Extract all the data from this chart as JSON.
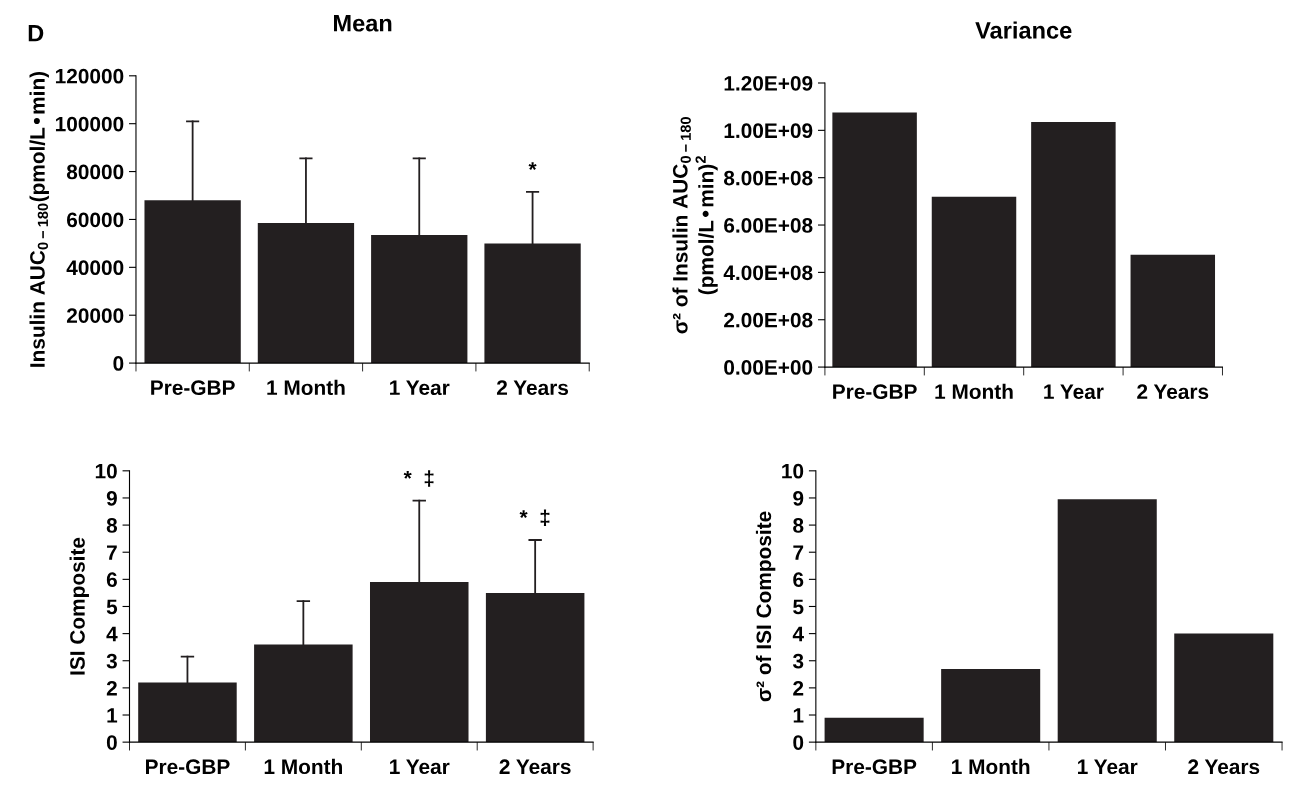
{
  "chart_data": [
    {
      "type": "bar",
      "title": "Mean",
      "ylabel": "Insulin AUC$_{0−180}$(pmol/L•min)",
      "categories": [
        "Pre-GBP",
        "1 Month",
        "1 Year",
        "2 Years"
      ],
      "values": [
        68000,
        58500,
        53500,
        50000
      ],
      "errors": [
        [
          68000,
          101000
        ],
        [
          58500,
          85500
        ],
        [
          53500,
          85500
        ],
        [
          50000,
          71500
        ]
      ],
      "color": "#231f20",
      "ylim": [
        0,
        120000
      ],
      "yticks": [
        0,
        20000,
        40000,
        60000,
        80000,
        100000,
        120000
      ],
      "grid": false,
      "annotations": [
        "D",
        {
          "text": "*",
          "x": "2 Years",
          "y": 71500
        }
      ]
    },
    {
      "type": "bar",
      "title": "Variance",
      "ylabel": "σ² of Insulin AUC$_{0−180}$\n(pmol/L•min)$^{2}$",
      "categories": [
        "Pre-GBP",
        "1 Month",
        "1 Year",
        "2 Years"
      ],
      "values": [
        1075000000,
        720000000,
        1035000000,
        475000000
      ],
      "color": "#231f20",
      "ylim": [
        0,
        1200000000
      ],
      "yticks": [
        {
          "value": 0,
          "label": "0.00E+00"
        },
        {
          "value": 200000000,
          "label": "2.00E+08"
        },
        {
          "value": 400000000,
          "label": "4.00E+08"
        },
        {
          "value": 600000000,
          "label": "6.00E+08"
        },
        {
          "value": 800000000,
          "label": "8.00E+08"
        },
        {
          "value": 1000000000,
          "label": "1.00E+09"
        },
        {
          "value": 1200000000,
          "label": "1.20E+09"
        }
      ],
      "grid": false
    },
    {
      "type": "bar",
      "ylabel": "ISI Composite",
      "categories": [
        "Pre-GBP",
        "1 Month",
        "1 Year",
        "2 Years"
      ],
      "values": [
        2.2,
        3.6,
        5.9,
        5.5
      ],
      "errors": [
        [
          2.2,
          3.15
        ],
        [
          3.6,
          5.2
        ],
        [
          5.9,
          8.9
        ],
        [
          5.5,
          7.45
        ]
      ],
      "color": "#231f20",
      "ylim": [
        0,
        10
      ],
      "yticks": [
        0,
        1,
        2,
        3,
        4,
        5,
        6,
        7,
        8,
        9,
        10
      ],
      "grid": false,
      "annotations": [
        {
          "text": "*  ‡",
          "x": "1 Year",
          "y": 8.9
        },
        {
          "text": "*  ‡",
          "x": "2 Years",
          "y": 7.45
        }
      ]
    },
    {
      "type": "bar",
      "ylabel": "σ² of ISI Composite",
      "categories": [
        "Pre-GBP",
        "1 Month",
        "1 Year",
        "2 Years"
      ],
      "values": [
        0.9,
        2.7,
        8.95,
        4.0
      ],
      "color": "#231f20",
      "ylim": [
        0,
        10
      ],
      "yticks": [
        0,
        1,
        2,
        3,
        4,
        5,
        6,
        7,
        8,
        9,
        10
      ],
      "grid": false
    }
  ]
}
